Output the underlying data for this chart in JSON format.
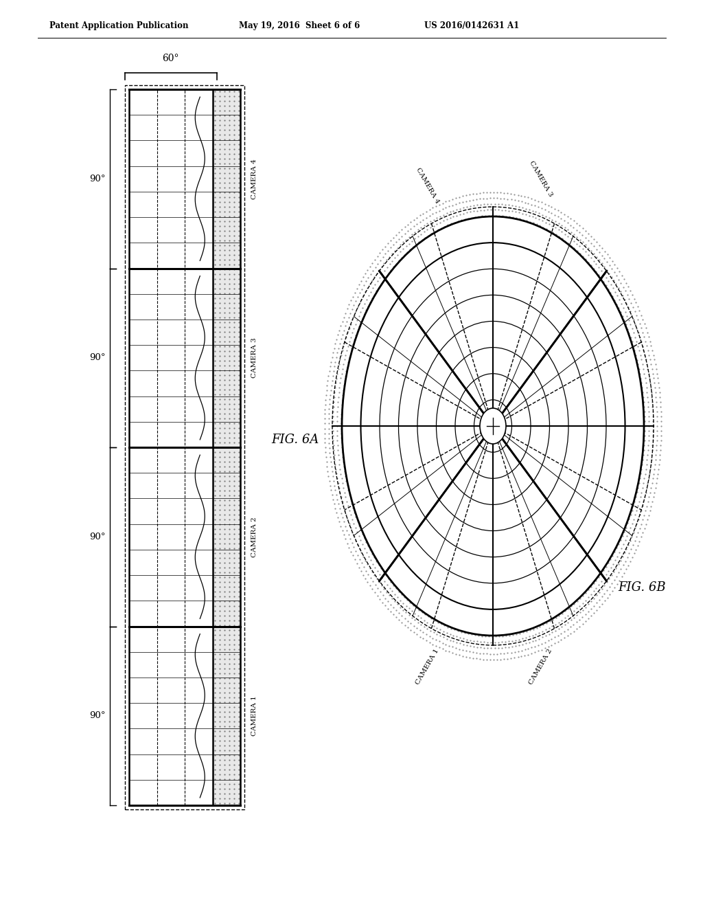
{
  "header_left": "Patent Application Publication",
  "header_mid": "May 19, 2016  Sheet 6 of 6",
  "header_right": "US 2016/0142631 A1",
  "fig6a_label": "FIG. 6A",
  "fig6b_label": "FIG. 6B",
  "camera_labels": [
    "CAMERA 1",
    "CAMERA 2",
    "CAMERA 3",
    "CAMERA 4"
  ],
  "angle_label": "60°",
  "section_angle": "90°",
  "background_color": "#ffffff",
  "line_color": "#000000"
}
